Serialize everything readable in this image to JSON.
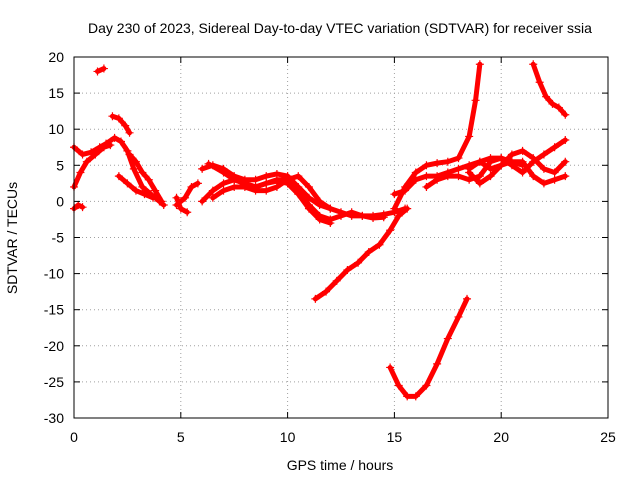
{
  "chart_data": {
    "type": "scatter",
    "title": "Day 230 of 2023, Sidereal Day-to-day VTEC variation (SDTVAR) for receiver ssia",
    "xlabel": "GPS time / hours",
    "ylabel": "SDTVAR / TECUs",
    "xlim": [
      0,
      25
    ],
    "ylim": [
      -30,
      20
    ],
    "xticks": [
      0,
      5,
      10,
      15,
      20,
      25
    ],
    "yticks": [
      -30,
      -25,
      -20,
      -15,
      -10,
      -5,
      0,
      5,
      10,
      15,
      20
    ],
    "grid": true,
    "marker": "+",
    "color": "#ff0000",
    "series": [
      {
        "points": [
          [
            0.0,
            7.5
          ],
          [
            0.4,
            6.5
          ],
          [
            0.8,
            6.8
          ],
          [
            1.2,
            7.5
          ],
          [
            1.5,
            8.0
          ],
          [
            1.9,
            8.8
          ],
          [
            2.2,
            8.3
          ],
          [
            2.5,
            7.0
          ],
          [
            2.8,
            4.5
          ],
          [
            3.2,
            2.0
          ],
          [
            3.6,
            1.0
          ],
          [
            4.0,
            0.0
          ],
          [
            4.2,
            -0.5
          ]
        ]
      },
      {
        "points": [
          [
            0.0,
            2.0
          ],
          [
            0.3,
            4.0
          ],
          [
            0.6,
            5.5
          ],
          [
            1.0,
            6.5
          ],
          [
            1.4,
            7.5
          ],
          [
            1.7,
            7.8
          ]
        ]
      },
      {
        "points": [
          [
            0.0,
            -1.0
          ],
          [
            0.2,
            -0.5
          ],
          [
            0.4,
            -0.8
          ]
        ]
      },
      {
        "points": [
          [
            1.1,
            18.0
          ],
          [
            1.4,
            18.4
          ]
        ]
      },
      {
        "points": [
          [
            1.8,
            11.8
          ],
          [
            2.1,
            11.5
          ],
          [
            2.4,
            10.5
          ],
          [
            2.6,
            9.5
          ]
        ]
      },
      {
        "points": [
          [
            2.6,
            6.5
          ],
          [
            2.9,
            5.5
          ],
          [
            3.2,
            4.0
          ],
          [
            3.5,
            3.0
          ],
          [
            3.8,
            1.5
          ],
          [
            4.1,
            0.0
          ]
        ]
      },
      {
        "points": [
          [
            2.1,
            3.5
          ],
          [
            2.5,
            2.5
          ],
          [
            2.9,
            1.5
          ],
          [
            3.3,
            1.0
          ],
          [
            3.7,
            0.5
          ]
        ]
      },
      {
        "points": [
          [
            4.8,
            -0.5
          ],
          [
            5.2,
            0.5
          ],
          [
            5.5,
            2.0
          ],
          [
            5.8,
            2.5
          ]
        ]
      },
      {
        "points": [
          [
            4.8,
            0.5
          ],
          [
            5.0,
            -1.0
          ],
          [
            5.3,
            -1.5
          ]
        ]
      },
      {
        "points": [
          [
            6.0,
            4.5
          ],
          [
            6.5,
            5.0
          ],
          [
            7.0,
            4.5
          ],
          [
            7.5,
            3.5
          ],
          [
            8.0,
            3.0
          ],
          [
            8.5,
            3.0
          ],
          [
            9.0,
            3.5
          ],
          [
            9.5,
            3.8
          ],
          [
            10.0,
            3.5
          ],
          [
            10.5,
            2.0
          ],
          [
            11.0,
            0.5
          ],
          [
            11.5,
            -0.5
          ],
          [
            12.0,
            -1.0
          ],
          [
            12.5,
            -1.5
          ],
          [
            13.0,
            -2.0
          ],
          [
            13.5,
            -2.0
          ],
          [
            14.0,
            -2.0
          ],
          [
            14.5,
            -1.8
          ],
          [
            15.0,
            -1.5
          ],
          [
            15.5,
            -1.0
          ]
        ]
      },
      {
        "points": [
          [
            6.3,
            5.2
          ],
          [
            7.0,
            4.0
          ],
          [
            7.5,
            3.0
          ],
          [
            8.0,
            2.5
          ],
          [
            8.5,
            2.0
          ],
          [
            9.0,
            2.5
          ],
          [
            9.5,
            3.0
          ],
          [
            10.0,
            3.0
          ],
          [
            10.5,
            1.5
          ],
          [
            11.0,
            -0.5
          ],
          [
            11.5,
            -2.0
          ],
          [
            12.0,
            -2.5
          ],
          [
            12.5,
            -2.0
          ],
          [
            13.0,
            -1.5
          ],
          [
            13.5,
            -2.0
          ],
          [
            14.0,
            -2.3
          ],
          [
            14.5,
            -2.2
          ]
        ]
      },
      {
        "points": [
          [
            6.5,
            0.5
          ],
          [
            7.0,
            1.5
          ],
          [
            7.5,
            2.0
          ],
          [
            8.0,
            2.0
          ],
          [
            8.5,
            1.5
          ],
          [
            9.0,
            1.5
          ],
          [
            9.5,
            2.0
          ],
          [
            10.0,
            3.0
          ],
          [
            10.5,
            3.5
          ],
          [
            11.0,
            2.0
          ],
          [
            11.5,
            0.0
          ],
          [
            12.0,
            -1.0
          ]
        ]
      },
      {
        "points": [
          [
            6.0,
            0.0
          ],
          [
            6.5,
            1.5
          ],
          [
            7.0,
            2.5
          ],
          [
            7.5,
            3.0
          ],
          [
            8.0,
            2.5
          ],
          [
            8.5,
            2.0
          ],
          [
            9.0,
            2.5
          ],
          [
            9.5,
            2.8
          ],
          [
            10.0,
            2.5
          ],
          [
            10.5,
            1.0
          ],
          [
            11.0,
            -1.0
          ],
          [
            11.5,
            -2.5
          ],
          [
            12.0,
            -3.0
          ]
        ]
      },
      {
        "points": [
          [
            11.3,
            -13.5
          ],
          [
            11.8,
            -12.5
          ],
          [
            12.3,
            -11.0
          ],
          [
            12.8,
            -9.5
          ],
          [
            13.3,
            -8.5
          ],
          [
            13.8,
            -7.0
          ],
          [
            14.3,
            -6.0
          ],
          [
            14.8,
            -4.0
          ],
          [
            15.2,
            -2.0
          ],
          [
            15.6,
            -1.0
          ]
        ]
      },
      {
        "points": [
          [
            14.8,
            -23.0
          ],
          [
            15.2,
            -25.5
          ],
          [
            15.6,
            -27.0
          ],
          [
            16.0,
            -27.0
          ],
          [
            16.5,
            -25.5
          ],
          [
            17.0,
            -22.5
          ],
          [
            17.5,
            -19.0
          ],
          [
            18.0,
            -16.0
          ],
          [
            18.4,
            -13.5
          ]
        ]
      },
      {
        "points": [
          [
            15.0,
            -1.0
          ],
          [
            15.5,
            2.0
          ],
          [
            16.0,
            4.0
          ],
          [
            16.5,
            5.0
          ],
          [
            17.0,
            5.3
          ],
          [
            17.5,
            5.5
          ],
          [
            18.0,
            6.0
          ],
          [
            18.5,
            9.0
          ],
          [
            18.8,
            14.0
          ],
          [
            19.0,
            19.0
          ]
        ]
      },
      {
        "points": [
          [
            15.0,
            1.0
          ],
          [
            15.5,
            1.5
          ],
          [
            16.0,
            3.0
          ],
          [
            16.5,
            3.5
          ],
          [
            17.0,
            3.5
          ],
          [
            17.5,
            4.0
          ],
          [
            18.0,
            4.5
          ],
          [
            18.5,
            5.0
          ],
          [
            19.0,
            5.5
          ],
          [
            19.5,
            6.0
          ],
          [
            20.0,
            6.0
          ],
          [
            20.5,
            5.5
          ],
          [
            21.0,
            5.0
          ]
        ]
      },
      {
        "points": [
          [
            16.5,
            2.0
          ],
          [
            17.0,
            3.0
          ],
          [
            17.5,
            3.5
          ],
          [
            18.0,
            3.5
          ],
          [
            18.5,
            3.0
          ],
          [
            19.0,
            3.5
          ],
          [
            19.5,
            5.5
          ],
          [
            20.0,
            6.0
          ],
          [
            20.5,
            5.0
          ],
          [
            21.0,
            4.0
          ],
          [
            21.5,
            5.5
          ],
          [
            22.0,
            6.5
          ],
          [
            22.5,
            7.5
          ],
          [
            23.0,
            8.5
          ]
        ]
      },
      {
        "points": [
          [
            18.5,
            4.0
          ],
          [
            19.0,
            2.5
          ],
          [
            19.5,
            3.5
          ],
          [
            20.0,
            5.0
          ],
          [
            20.5,
            5.5
          ],
          [
            21.0,
            5.5
          ],
          [
            21.5,
            3.5
          ],
          [
            22.0,
            2.5
          ],
          [
            22.5,
            3.0
          ],
          [
            23.0,
            3.5
          ]
        ]
      },
      {
        "points": [
          [
            18.5,
            4.5
          ],
          [
            19.0,
            5.5
          ],
          [
            19.5,
            4.5
          ],
          [
            20.0,
            5.0
          ],
          [
            20.5,
            6.5
          ],
          [
            21.0,
            7.0
          ],
          [
            21.5,
            6.0
          ],
          [
            22.0,
            4.5
          ],
          [
            22.5,
            4.0
          ],
          [
            23.0,
            5.5
          ]
        ]
      },
      {
        "points": [
          [
            21.5,
            19.0
          ],
          [
            21.8,
            16.5
          ],
          [
            22.1,
            14.5
          ],
          [
            22.4,
            13.5
          ],
          [
            22.7,
            13.0
          ],
          [
            23.0,
            12.0
          ]
        ]
      }
    ]
  }
}
